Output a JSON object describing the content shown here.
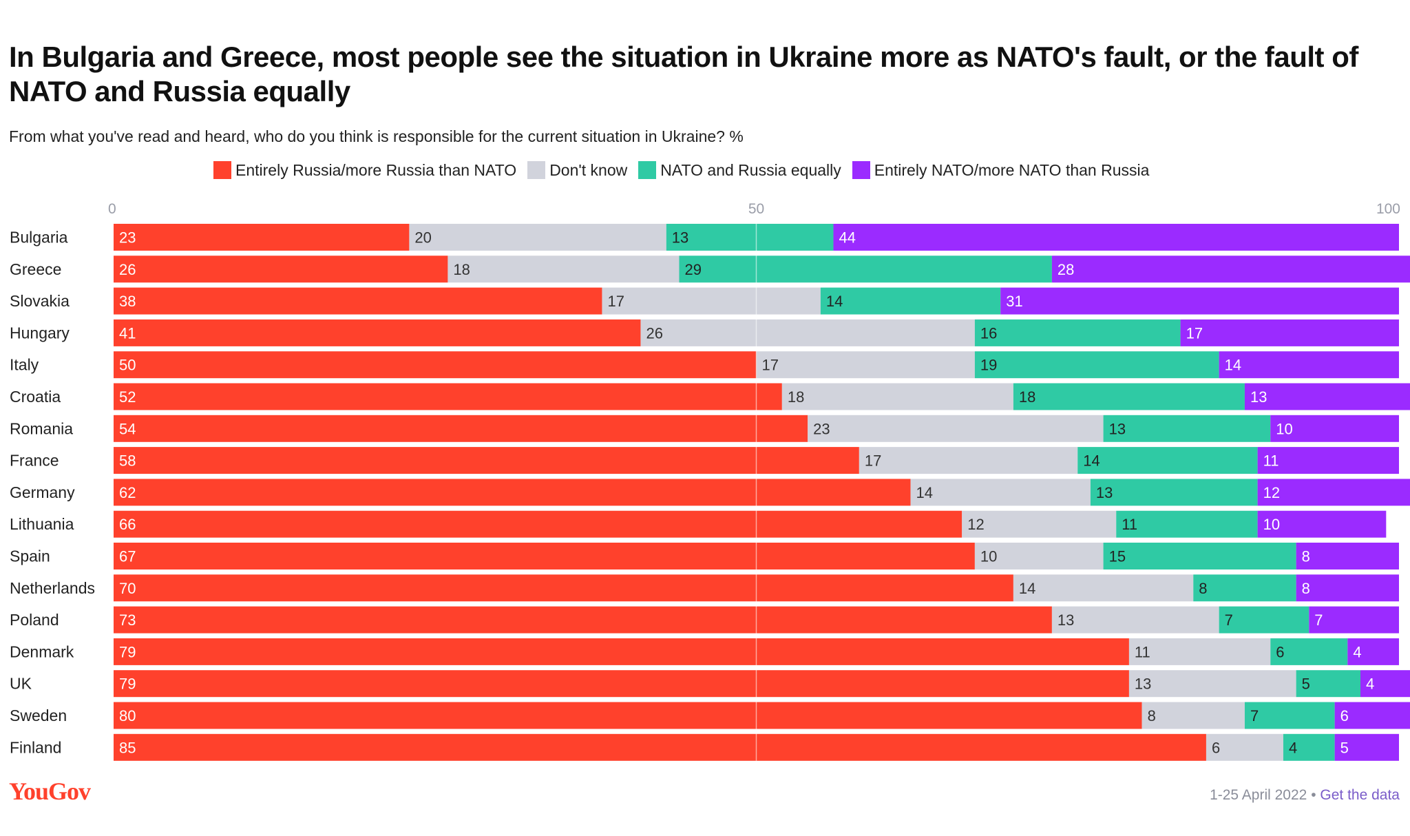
{
  "title": "In Bulgaria and Greece, most people see the situation in Ukraine more as NATO's fault, or the fault of NATO and Russia equally",
  "subtitle": "From what you've read and heard, who do you think is responsible for the current situation in Ukraine? %",
  "footer": {
    "logo": "YouGov",
    "date": "1-25 April 2022",
    "separator": "•",
    "link": "Get the data"
  },
  "chart_data": {
    "type": "bar",
    "orientation": "horizontal",
    "stacked": true,
    "xlim": [
      0,
      100
    ],
    "x_ticks": [
      0,
      50,
      100
    ],
    "gridlines": [
      50
    ],
    "legend_position": "top",
    "categories": [
      "Bulgaria",
      "Greece",
      "Slovakia",
      "Hungary",
      "Italy",
      "Croatia",
      "Romania",
      "France",
      "Germany",
      "Lithuania",
      "Spain",
      "Netherlands",
      "Poland",
      "Denmark",
      "UK",
      "Sweden",
      "Finland"
    ],
    "series": [
      {
        "name": "Entirely Russia/more Russia than NATO",
        "color": "#ff412c",
        "label_color": "#ffffff",
        "values": [
          23,
          26,
          38,
          41,
          50,
          52,
          54,
          58,
          62,
          66,
          67,
          70,
          73,
          79,
          79,
          80,
          85
        ]
      },
      {
        "name": "Don't know",
        "color": "#d1d3dc",
        "label_color": "#333333",
        "values": [
          20,
          18,
          17,
          26,
          17,
          18,
          23,
          17,
          14,
          12,
          10,
          14,
          13,
          11,
          13,
          8,
          6
        ]
      },
      {
        "name": "NATO and Russia equally",
        "color": "#2fcaa4",
        "label_color": "#222222",
        "values": [
          13,
          29,
          14,
          16,
          19,
          18,
          13,
          14,
          13,
          11,
          15,
          8,
          7,
          6,
          5,
          7,
          4
        ]
      },
      {
        "name": "Entirely NATO/more NATO than Russia",
        "color": "#9b2bff",
        "label_color": "#ffffff",
        "values": [
          44,
          28,
          31,
          17,
          14,
          13,
          10,
          11,
          12,
          10,
          8,
          8,
          7,
          4,
          4,
          6,
          5
        ]
      }
    ]
  }
}
